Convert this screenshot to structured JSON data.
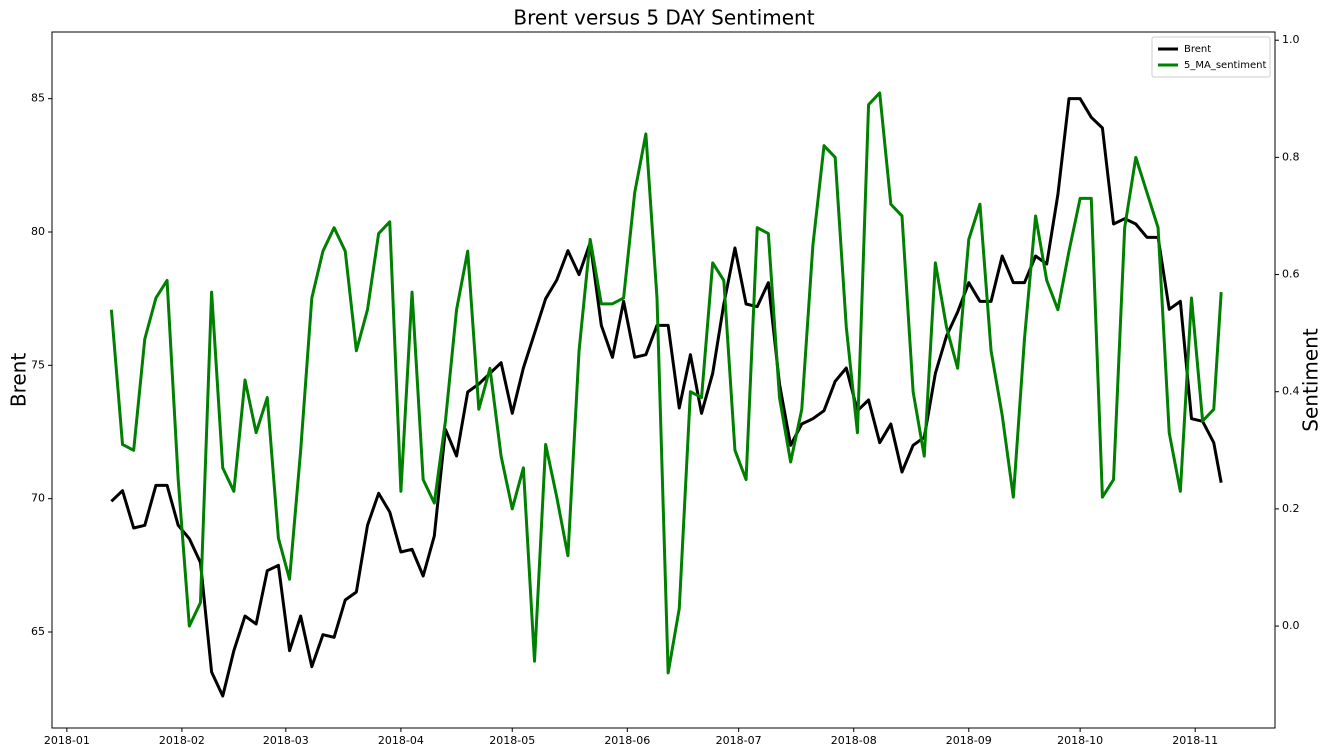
{
  "chart_data": {
    "type": "line",
    "title": "Brent versus 5 DAY Sentiment",
    "ylabel": "Brent",
    "y2label": "Sentiment",
    "x": [
      12,
      15,
      18,
      21,
      24,
      27,
      30,
      33,
      36,
      39,
      42,
      45,
      48,
      51,
      54,
      57,
      60,
      63,
      66,
      69,
      72,
      75,
      78,
      81,
      84,
      87,
      90,
      93,
      96,
      99,
      102,
      105,
      108,
      111,
      114,
      117,
      120,
      123,
      126,
      129,
      132,
      135,
      138,
      141,
      144,
      147,
      150,
      153,
      156,
      159,
      162,
      165,
      168,
      171,
      174,
      177,
      180,
      183,
      186,
      189,
      192,
      195,
      198,
      201,
      204,
      207,
      210,
      213,
      216,
      219,
      222,
      225,
      228,
      231,
      234,
      237,
      240,
      243,
      246,
      249,
      252,
      255,
      258,
      261,
      264,
      267,
      270,
      273,
      276,
      279,
      282,
      285,
      288,
      291,
      294,
      297,
      300,
      303,
      306,
      309,
      311
    ],
    "series": [
      {
        "name": "Brent",
        "color": "#000000",
        "axis": "y",
        "values": [
          69.9,
          70.3,
          68.9,
          69.0,
          70.5,
          70.5,
          69.0,
          68.5,
          67.6,
          63.5,
          62.6,
          64.3,
          65.6,
          65.3,
          67.3,
          67.5,
          64.3,
          65.6,
          63.7,
          64.9,
          64.8,
          66.2,
          66.5,
          69.0,
          70.2,
          69.5,
          68.0,
          68.1,
          67.1,
          68.6,
          72.6,
          71.6,
          74.0,
          74.3,
          74.7,
          75.1,
          73.2,
          74.9,
          76.2,
          77.5,
          78.2,
          79.3,
          78.4,
          79.6,
          76.5,
          75.3,
          77.4,
          75.3,
          75.4,
          76.5,
          76.5,
          73.4,
          75.4,
          73.2,
          74.7,
          77.3,
          79.4,
          77.3,
          77.2,
          78.1,
          74.3,
          72.0,
          72.8,
          73.0,
          73.3,
          74.4,
          74.9,
          73.3,
          73.7,
          72.1,
          72.8,
          71.0,
          72.0,
          72.3,
          74.7,
          76.1,
          77.0,
          78.1,
          77.4,
          77.4,
          79.1,
          78.1,
          78.1,
          79.1,
          78.8,
          81.4,
          85.0,
          85.0,
          84.3,
          83.9,
          80.3,
          80.5,
          80.3,
          79.8,
          79.8,
          77.1,
          77.4,
          73.0,
          72.9,
          72.1,
          70.6
        ]
      },
      {
        "name": "5_MA_sentiment",
        "color": "#008000",
        "axis": "y2",
        "values": [
          0.54,
          0.31,
          0.3,
          0.49,
          0.56,
          0.59,
          0.25,
          0.0,
          0.04,
          0.57,
          0.27,
          0.23,
          0.42,
          0.33,
          0.39,
          0.15,
          0.08,
          0.3,
          0.56,
          0.64,
          0.68,
          0.64,
          0.47,
          0.54,
          0.67,
          0.69,
          0.23,
          0.57,
          0.25,
          0.21,
          0.35,
          0.54,
          0.64,
          0.37,
          0.44,
          0.29,
          0.2,
          0.27,
          -0.06,
          0.31,
          0.22,
          0.12,
          0.47,
          0.66,
          0.55,
          0.55,
          0.56,
          0.74,
          0.84,
          0.56,
          -0.08,
          0.03,
          0.4,
          0.39,
          0.62,
          0.59,
          0.3,
          0.25,
          0.68,
          0.67,
          0.39,
          0.28,
          0.37,
          0.65,
          0.82,
          0.8,
          0.51,
          0.33,
          0.89,
          0.91,
          0.72,
          0.7,
          0.4,
          0.29,
          0.62,
          0.51,
          0.44,
          0.66,
          0.72,
          0.47,
          0.36,
          0.22,
          0.49,
          0.7,
          0.59,
          0.54,
          0.64,
          0.73,
          0.73,
          0.22,
          0.25,
          0.68,
          0.8,
          0.74,
          0.68,
          0.33,
          0.23,
          0.56,
          0.35,
          0.37,
          0.57
        ]
      }
    ],
    "xlim": [
      -4.0,
      325.5
    ],
    "xticks": [
      {
        "value": 0,
        "label": "2018-01"
      },
      {
        "value": 31,
        "label": "2018-02"
      },
      {
        "value": 59,
        "label": "2018-03"
      },
      {
        "value": 90,
        "label": "2018-04"
      },
      {
        "value": 120,
        "label": "2018-05"
      },
      {
        "value": 151,
        "label": "2018-06"
      },
      {
        "value": 181,
        "label": "2018-07"
      },
      {
        "value": 212,
        "label": "2018-08"
      },
      {
        "value": 243,
        "label": "2018-09"
      },
      {
        "value": 273,
        "label": "2018-10"
      },
      {
        "value": 304,
        "label": "2018-11"
      }
    ],
    "ylim": [
      61.4,
      87.5
    ],
    "yticks": [
      65,
      70,
      75,
      80,
      85
    ],
    "y2lim": [
      -0.174,
      1.014
    ],
    "y2ticks": [
      {
        "value": 0,
        "label": "0.0"
      },
      0.2,
      0.4,
      0.6,
      0.8,
      {
        "value": 1,
        "label": "1.0"
      }
    ],
    "grid": false,
    "legend": "upper right"
  }
}
